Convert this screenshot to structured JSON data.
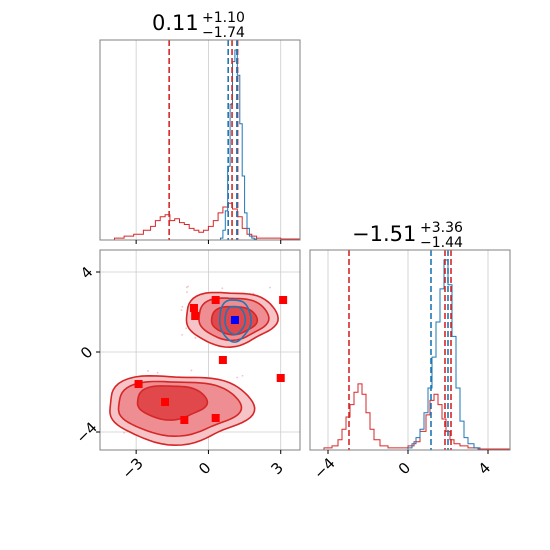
{
  "chart_data": {
    "type": "corner",
    "parameters": [
      {
        "title_value": "0.11",
        "title_upper": "+1.10",
        "title_lower": "−1.74"
      },
      {
        "title_value": "−1.51",
        "title_upper": "+3.36",
        "title_lower": "−1.44"
      }
    ],
    "x_ticks": {
      "values": [
        -3,
        0,
        3
      ],
      "labels": [
        "−3",
        "0",
        "3"
      ],
      "range": [
        -4.5,
        3.8
      ]
    },
    "y_ticks": {
      "values": [
        -4,
        0,
        4
      ],
      "labels": [
        "−4",
        "0",
        "4"
      ],
      "range": [
        -4.9,
        5.1
      ]
    },
    "x2_ticks": {
      "values": [
        -4,
        0,
        4
      ],
      "labels": [
        "−4",
        "0",
        "4"
      ],
      "range": [
        -4.9,
        5.1
      ]
    },
    "grid": true,
    "colors": {
      "red": "#d62728",
      "blue": "#1f77b4",
      "marker_red": "#ff0000",
      "marker_blue": "#0000ff"
    },
    "hist1_red": {
      "x": [
        -4.5,
        -3.9,
        -3.5,
        -3.1,
        -2.7,
        -2.4,
        -2.2,
        -2.0,
        -1.8,
        -1.6,
        -1.4,
        -1.2,
        -1.0,
        -0.8,
        -0.6,
        -0.4,
        -0.2,
        0.0,
        0.2,
        0.4,
        0.6,
        0.8,
        1.0,
        1.2,
        1.4,
        1.6,
        1.8,
        2.0,
        2.4,
        3.0,
        3.8
      ],
      "y": [
        0,
        0.01,
        0.02,
        0.03,
        0.05,
        0.07,
        0.1,
        0.12,
        0.13,
        0.1,
        0.11,
        0.09,
        0.08,
        0.06,
        0.05,
        0.04,
        0.05,
        0.07,
        0.1,
        0.14,
        0.17,
        0.19,
        0.16,
        0.12,
        0.06,
        0.03,
        0.02,
        0.01,
        0.01,
        0.005,
        0
      ]
    },
    "hist1_blue": {
      "x": [
        0.4,
        0.5,
        0.6,
        0.7,
        0.8,
        0.9,
        1.0,
        1.1,
        1.2,
        1.3,
        1.4,
        1.5,
        1.6,
        1.7,
        1.8,
        1.9,
        2.0
      ],
      "y": [
        0,
        0.01,
        0.05,
        0.15,
        0.38,
        0.7,
        0.92,
        0.98,
        0.85,
        0.6,
        0.33,
        0.14,
        0.06,
        0.02,
        0.01,
        0.005,
        0
      ]
    },
    "hist1_lines": {
      "red_quantiles": [
        -1.63,
        0.98,
        1.21
      ],
      "blue_quantiles": [
        0.82,
        1.18
      ]
    },
    "hist2_red": {
      "x": [
        -4.9,
        -4.2,
        -3.8,
        -3.5,
        -3.3,
        -3.1,
        -2.9,
        -2.7,
        -2.5,
        -2.3,
        -2.1,
        -1.9,
        -1.7,
        -1.4,
        -1.0,
        -0.5,
        0.0,
        0.3,
        0.6,
        0.9,
        1.1,
        1.3,
        1.5,
        1.7,
        1.9,
        2.1,
        2.3,
        2.6,
        3.0,
        3.5,
        5.1
      ],
      "y": [
        0,
        0.01,
        0.02,
        0.05,
        0.1,
        0.16,
        0.22,
        0.28,
        0.32,
        0.27,
        0.18,
        0.1,
        0.05,
        0.02,
        0.01,
        0.01,
        0.02,
        0.04,
        0.09,
        0.17,
        0.24,
        0.27,
        0.22,
        0.15,
        0.09,
        0.05,
        0.03,
        0.02,
        0.01,
        0.005,
        0
      ]
    },
    "hist2_blue": {
      "x": [
        -0.2,
        0.0,
        0.2,
        0.4,
        0.6,
        0.8,
        1.0,
        1.2,
        1.4,
        1.6,
        1.8,
        2.0,
        2.2,
        2.4,
        2.6,
        2.8,
        3.0,
        3.3,
        3.6
      ],
      "y": [
        0,
        0.01,
        0.03,
        0.06,
        0.1,
        0.18,
        0.3,
        0.45,
        0.62,
        0.78,
        0.92,
        0.8,
        0.55,
        0.3,
        0.14,
        0.06,
        0.03,
        0.01,
        0
      ]
    },
    "hist2_lines": {
      "red_quantiles": [
        -2.95,
        1.85,
        2.15
      ],
      "blue_quantiles": [
        1.15,
        2.0
      ]
    },
    "scatter_red": [
      [
        -0.6,
        2.2
      ],
      [
        -0.55,
        1.8
      ],
      [
        0.3,
        2.6
      ],
      [
        3.1,
        2.6
      ],
      [
        0.6,
        -0.4
      ],
      [
        3.0,
        -1.3
      ],
      [
        -2.9,
        -1.6
      ],
      [
        -1.8,
        -2.5
      ],
      [
        -1.0,
        -3.4
      ],
      [
        0.3,
        -3.3
      ]
    ],
    "truth_blue": [
      1.1,
      1.6
    ]
  }
}
